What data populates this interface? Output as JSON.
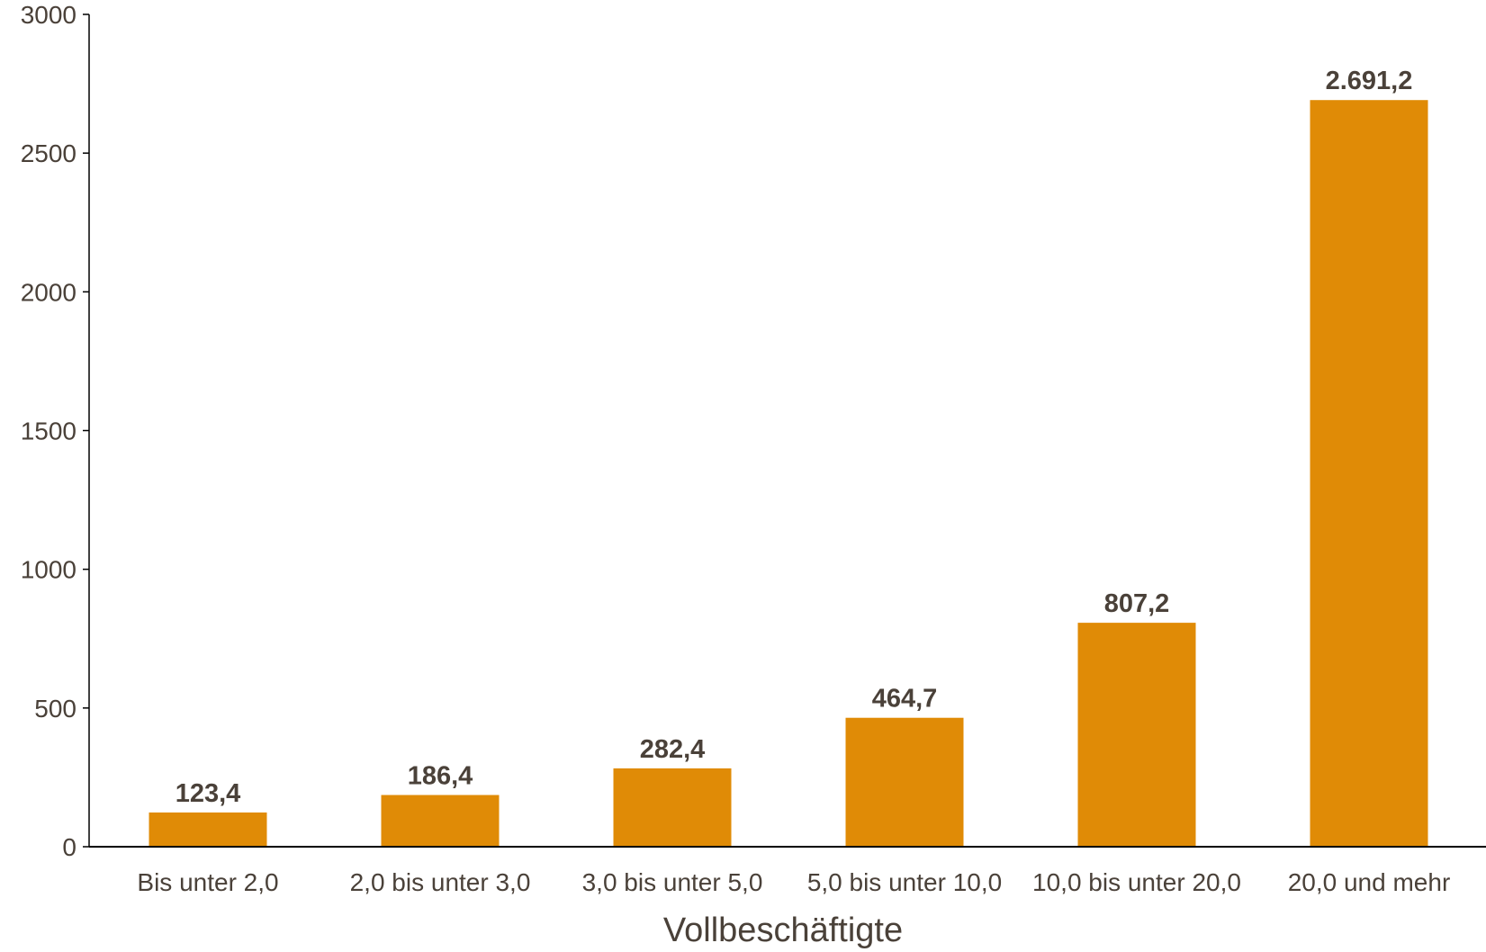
{
  "chart_data": {
    "type": "bar",
    "title": "",
    "xlabel": "Vollbeschäftigte",
    "ylabel": "",
    "ylim": [
      0,
      3000
    ],
    "yticks": [
      0,
      500,
      1000,
      1500,
      2000,
      2500,
      3000
    ],
    "ytick_labels": [
      "0",
      "500",
      "1000",
      "1500",
      "2000",
      "2500",
      "3000"
    ],
    "grid": false,
    "legend": "none",
    "categories": [
      "Bis unter 2,0",
      "2,0 bis unter 3,0",
      "3,0 bis unter 5,0",
      "5,0 bis unter 10,0",
      "10,0 bis unter 20,0",
      "20,0 und mehr"
    ],
    "values": [
      123.4,
      186.4,
      282.4,
      464.7,
      807.2,
      2691.2
    ],
    "value_labels": [
      "123,4",
      "186,4",
      "282,4",
      "464,7",
      "807,2",
      "2.691,2"
    ],
    "colors": {
      "bar": "#e08b06",
      "text": "#4a4139",
      "axis": "#000000"
    }
  }
}
